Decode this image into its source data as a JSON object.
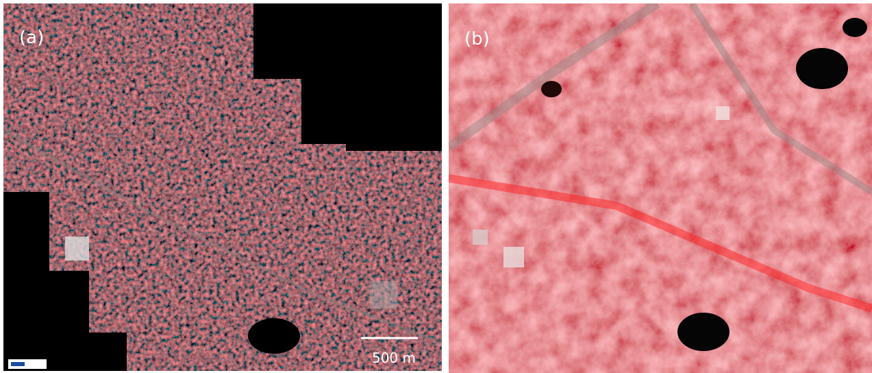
{
  "panels": [
    {
      "label": "(a)",
      "scale_bar": "500 m"
    },
    {
      "label": "(b)"
    }
  ]
}
